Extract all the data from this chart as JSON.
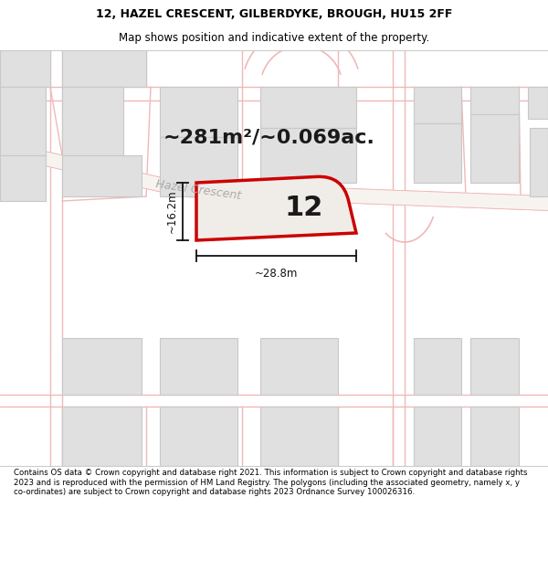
{
  "title_line1": "12, HAZEL CRESCENT, GILBERDYKE, BROUGH, HU15 2FF",
  "title_line2": "Map shows position and indicative extent of the property.",
  "footer_text": "Contains OS data © Crown copyright and database right 2021. This information is subject to Crown copyright and database rights 2023 and is reproduced with the permission of HM Land Registry. The polygons (including the associated geometry, namely x, y co-ordinates) are subject to Crown copyright and database rights 2023 Ordnance Survey 100026316.",
  "area_text": "~281m²/~0.069ac.",
  "street_label": "Hazel Crescent",
  "plot_number": "12",
  "dim_width": "~28.8m",
  "dim_height": "~16.2m",
  "map_bg": "#f7f4f0",
  "road_line_color": "#f0b8b8",
  "building_fill": "#e0e0e0",
  "building_edge": "#c8c8c8",
  "plot_fill": "#f0ede8",
  "plot_edge": "#cc0000",
  "title_fontsize": 9,
  "subtitle_fontsize": 8.5,
  "area_fontsize": 16,
  "street_fontsize": 9,
  "plot_num_fontsize": 22,
  "dim_fontsize": 8.5,
  "footer_fontsize": 6.2
}
